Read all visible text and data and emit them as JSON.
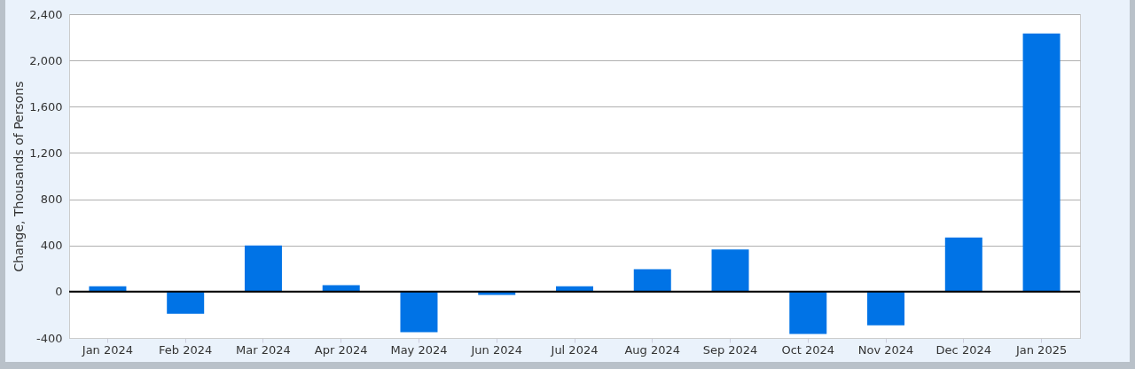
{
  "chart_data": {
    "type": "bar",
    "ylabel": "Change, Thousands of Persons",
    "categories": [
      "Jan 2024",
      "Feb 2024",
      "Mar 2024",
      "Apr 2024",
      "May 2024",
      "Jun 2024",
      "Jul 2024",
      "Aug 2024",
      "Sep 2024",
      "Oct 2024",
      "Nov 2024",
      "Dec 2024",
      "Jan 2025"
    ],
    "values": [
      47,
      -191,
      400,
      56,
      -350,
      -28,
      47,
      194,
      366,
      -366,
      -291,
      469,
      2234
    ],
    "color": "#0073e6",
    "ylim": [
      -400,
      2400
    ],
    "yticks": [
      -400,
      0,
      400,
      800,
      {
        "value": 1200,
        "label": "1,200"
      },
      {
        "value": 1600,
        "label": "1,600"
      },
      {
        "value": 2000,
        "label": "2,000"
      },
      {
        "value": 2400,
        "label": "2,400"
      }
    ],
    "grid": "y",
    "ref_lines": [
      {
        "axis": "y",
        "value": 0,
        "color": "#000000"
      }
    ]
  }
}
